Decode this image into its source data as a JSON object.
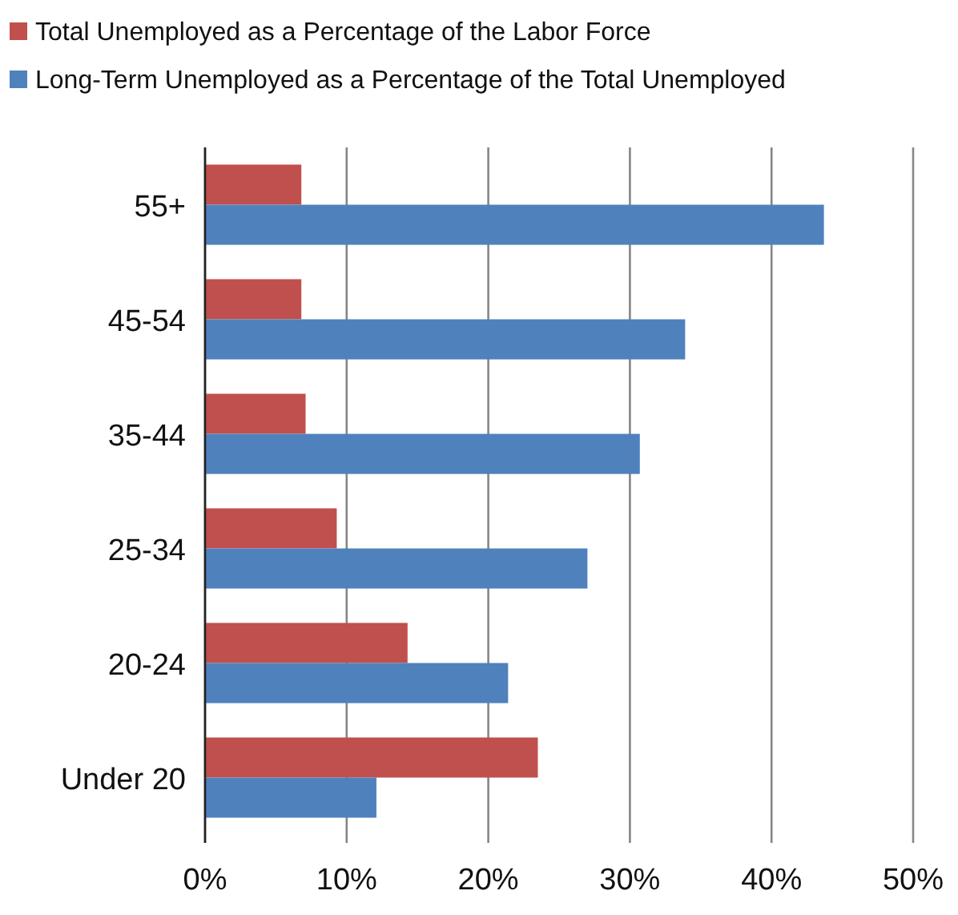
{
  "chart_data": {
    "type": "bar",
    "orientation": "horizontal",
    "categories": [
      "55+",
      "45-54",
      "35-44",
      "25-34",
      "20-24",
      "Under 20"
    ],
    "series": [
      {
        "name": "Total Unemployed as a Percentage of the Labor Force",
        "color": "#c0504d",
        "values": [
          6.8,
          6.8,
          7.1,
          9.3,
          14.3,
          23.5
        ]
      },
      {
        "name": "Long-Term Unemployed as a Percentage of the Total Unemployed",
        "color": "#4f81bd",
        "values": [
          43.7,
          33.9,
          30.7,
          27.0,
          21.4,
          12.1
        ]
      }
    ],
    "xlim": [
      0,
      50
    ],
    "xticks": [
      {
        "value": 0,
        "label": "0%"
      },
      {
        "value": 10,
        "label": "10%"
      },
      {
        "value": 20,
        "label": "20%"
      },
      {
        "value": 30,
        "label": "30%"
      },
      {
        "value": 40,
        "label": "40%"
      },
      {
        "value": 50,
        "label": "50%"
      }
    ],
    "grid": "x",
    "legend": "top"
  }
}
